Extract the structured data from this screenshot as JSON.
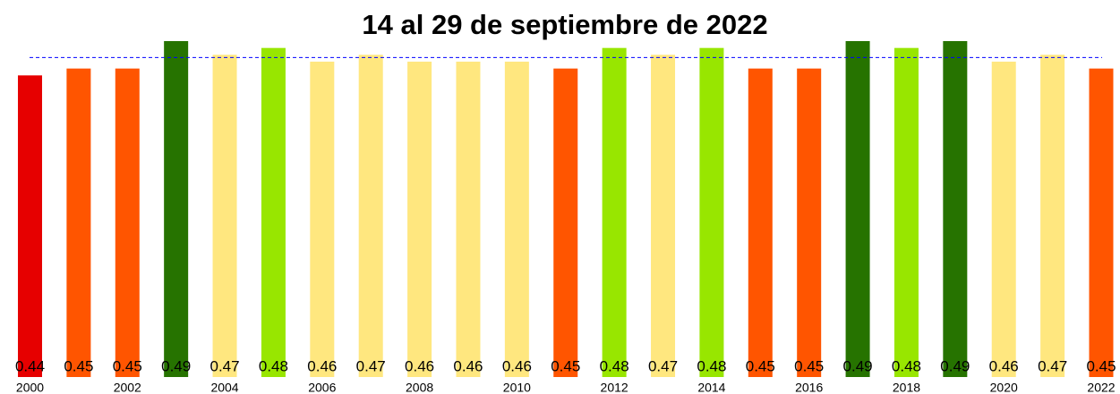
{
  "chart_data": {
    "type": "bar",
    "title": "14 al 29 de septiembre de 2022",
    "categories": [
      "2000",
      null,
      "2002",
      null,
      "2004",
      null,
      "2006",
      null,
      "2008",
      null,
      "2010",
      null,
      "2012",
      null,
      "2014",
      null,
      "2016",
      null,
      "2018",
      null,
      "2020",
      null,
      "2022"
    ],
    "values": [
      0.44,
      0.45,
      0.45,
      0.49,
      0.47,
      0.48,
      0.46,
      0.47,
      0.46,
      0.46,
      0.46,
      0.45,
      0.48,
      0.47,
      0.48,
      0.45,
      0.45,
      0.49,
      0.48,
      0.49,
      0.46,
      0.47,
      0.45
    ],
    "colors": [
      "#e60000",
      "#ff5500",
      "#ff5500",
      "#267300",
      "#ffe77f",
      "#98e600",
      "#ffe77f",
      "#ffe77f",
      "#ffe77f",
      "#ffe77f",
      "#ffe77f",
      "#ff5500",
      "#98e600",
      "#ffe77f",
      "#98e600",
      "#ff5500",
      "#ff5500",
      "#267300",
      "#98e600",
      "#267300",
      "#ffe77f",
      "#ffe77f",
      "#ff5500"
    ],
    "ylim": [
      0,
      0.49
    ],
    "reference_line": 0.466,
    "reference_color": "#0000ff"
  }
}
